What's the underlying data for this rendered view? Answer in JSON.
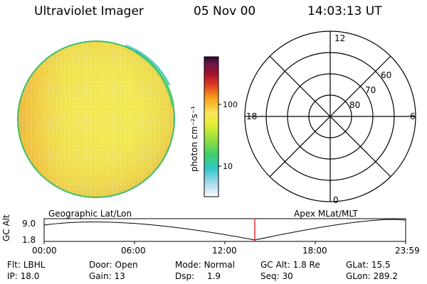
{
  "header": {
    "instrument": "Ultraviolet Imager",
    "date": "05 Nov 00",
    "time": "14:03:13 UT"
  },
  "colorbar": {
    "unit_label": "photon cm⁻²s⁻¹",
    "tick_100": "100",
    "tick_10": "10"
  },
  "polar_plot": {
    "mlt_top": "12",
    "mlt_bottom": "0",
    "mlt_left": "18",
    "mlt_right": "6",
    "lat_60": "60",
    "lat_70": "70",
    "lat_80": "80"
  },
  "timeline": {
    "y_axis_label": "GC Alt",
    "y_max": "9.0",
    "y_min": "1.8",
    "left_title": "Geographic Lat/Lon",
    "right_title": "Apex MLat/MLT",
    "x_ticks": [
      "00:00",
      "06:00",
      "12:00",
      "18:00",
      "23:59"
    ],
    "marker_color": "#ff0000"
  },
  "metadata": {
    "row1": [
      {
        "label": "Flt:",
        "value": "LBHL"
      },
      {
        "label": "Door:",
        "value": "Open"
      },
      {
        "label": "Mode:",
        "value": "Normal"
      },
      {
        "label": "GC Alt:",
        "value": "1.8 Re"
      },
      {
        "label": "GLat:",
        "value": "15.5"
      }
    ],
    "row2": [
      {
        "label": "IP:",
        "value": "18.0"
      },
      {
        "label": "Gain:",
        "value": "13"
      },
      {
        "label": "Dsp:",
        "value": "1.9"
      },
      {
        "label": "Seq:",
        "value": "30"
      },
      {
        "label": "GLon:",
        "value": "289.2"
      }
    ]
  },
  "colors": {
    "disk_main": "#f2f256",
    "disk_warm": "#f2c040",
    "disk_edge": "#3dbf6b"
  }
}
